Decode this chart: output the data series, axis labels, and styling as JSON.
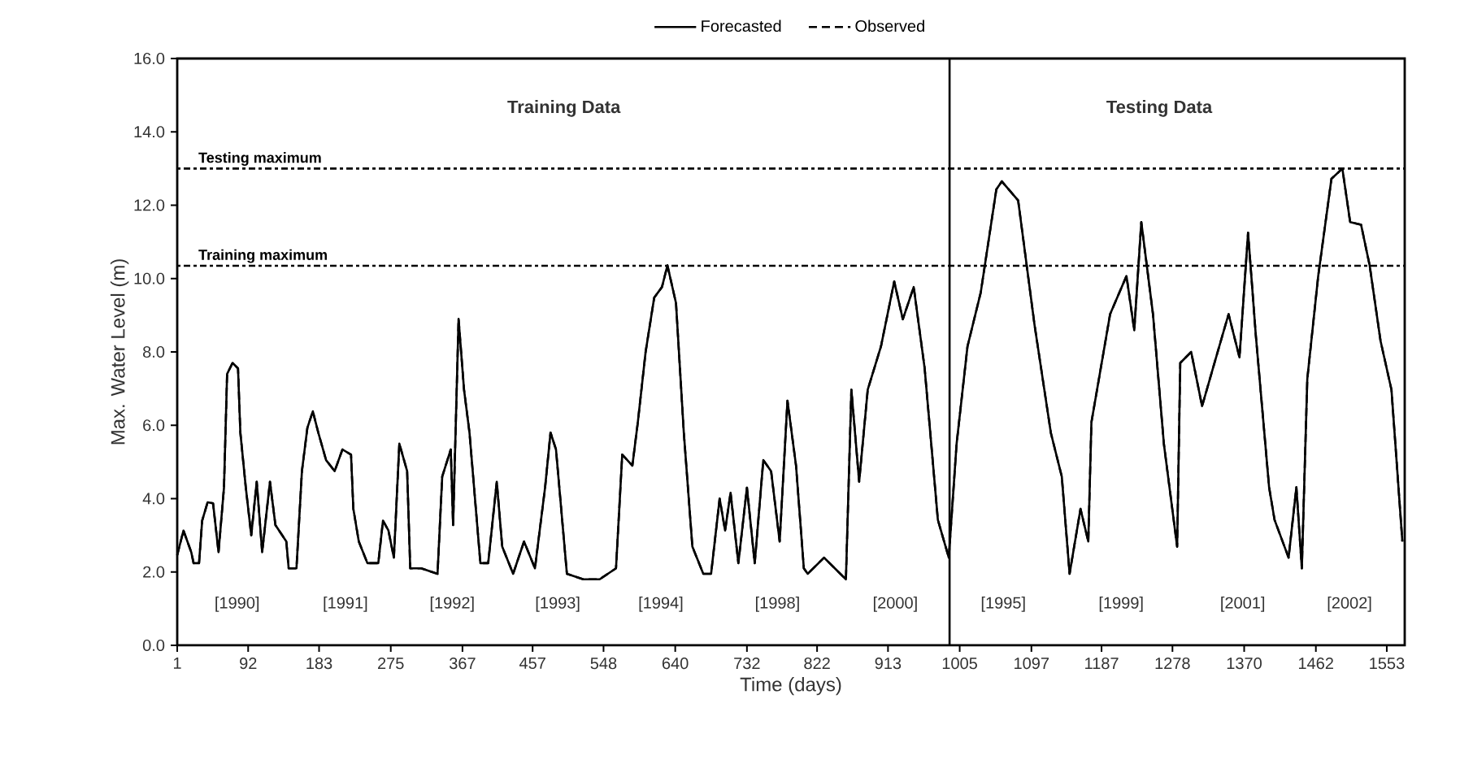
{
  "chart_data": {
    "type": "line",
    "xlabel": "Time (days)",
    "ylabel": "Max. Water Level (m)",
    "xlim": [
      1,
      1576
    ],
    "ylim": [
      0,
      16
    ],
    "xticks": [
      1,
      92,
      183,
      275,
      367,
      457,
      548,
      640,
      732,
      822,
      913,
      1005,
      1097,
      1187,
      1278,
      1370,
      1462,
      1553
    ],
    "yticks": [
      {
        "value": 0,
        "label": "0.0"
      },
      {
        "value": 2,
        "label": "2.0"
      },
      {
        "value": 4,
        "label": "4.0"
      },
      {
        "value": 6,
        "label": "6.0"
      },
      {
        "value": 8,
        "label": "8.0"
      },
      {
        "value": 10,
        "label": "10.0"
      },
      {
        "value": 12,
        "label": "12.0"
      },
      {
        "value": 14,
        "label": "14.0"
      },
      {
        "value": 16,
        "label": "16.0"
      }
    ],
    "x": [
      1,
      9,
      19,
      22,
      29,
      33,
      40,
      47,
      54,
      61,
      65,
      72,
      79,
      82,
      89,
      96,
      103,
      110,
      120,
      127,
      141,
      144,
      154,
      161,
      168,
      175,
      182,
      192,
      203,
      213,
      224,
      227,
      234,
      245,
      259,
      265,
      272,
      279,
      286,
      296,
      300,
      314,
      335,
      341,
      352,
      355,
      362,
      369,
      376,
      390,
      400,
      411,
      418,
      432,
      446,
      460,
      473,
      480,
      487,
      501,
      522,
      543,
      564,
      572,
      585,
      592,
      602,
      613,
      623,
      630,
      641,
      651,
      662,
      676,
      686,
      697,
      704,
      711,
      721,
      732,
      742,
      753,
      763,
      774,
      784,
      795,
      805,
      810,
      831,
      859,
      866,
      876,
      887,
      904,
      921,
      932,
      946,
      960,
      977,
      991,
      1001,
      1015,
      1032,
      1052,
      1059,
      1080,
      1101,
      1122,
      1136,
      1146,
      1160,
      1170,
      1174,
      1198,
      1219,
      1229,
      1238,
      1253,
      1267,
      1284,
      1288,
      1302,
      1316,
      1330,
      1350,
      1364,
      1375,
      1385,
      1402,
      1409,
      1427,
      1437,
      1444,
      1451,
      1465,
      1482,
      1496,
      1506,
      1520,
      1531,
      1545,
      1559,
      1573
    ],
    "series": [
      {
        "name": "Forecasted",
        "color": "#000000",
        "line_style": "solid",
        "values": [
          2.46,
          3.13,
          2.54,
          2.24,
          2.24,
          3.4,
          3.9,
          3.87,
          2.54,
          4.3,
          7.4,
          7.7,
          7.55,
          5.8,
          4.3,
          3.0,
          4.46,
          2.54,
          4.46,
          3.28,
          2.83,
          2.1,
          2.1,
          4.75,
          5.93,
          6.38,
          5.8,
          5.05,
          4.75,
          5.34,
          5.2,
          3.72,
          2.83,
          2.24,
          2.24,
          3.4,
          3.13,
          2.39,
          5.5,
          4.75,
          2.1,
          2.1,
          1.95,
          4.6,
          5.34,
          3.28,
          8.9,
          6.97,
          5.8,
          2.24,
          2.24,
          4.46,
          2.69,
          1.95,
          2.83,
          2.1,
          4.3,
          5.8,
          5.34,
          1.95,
          1.8,
          1.8,
          2.1,
          5.2,
          4.9,
          6.08,
          8.0,
          9.48,
          9.77,
          10.36,
          9.33,
          5.8,
          2.69,
          1.95,
          1.95,
          4.0,
          3.13,
          4.16,
          2.24,
          4.3,
          2.24,
          5.05,
          4.75,
          2.83,
          6.67,
          4.9,
          2.1,
          1.95,
          2.39,
          1.8,
          6.97,
          4.46,
          6.97,
          8.15,
          9.92,
          8.89,
          9.77,
          7.56,
          3.42,
          2.39,
          5.49,
          8.15,
          9.62,
          12.43,
          12.65,
          12.13,
          8.74,
          5.79,
          4.6,
          1.95,
          3.72,
          2.83,
          6.08,
          9.03,
          10.07,
          8.59,
          11.54,
          9.03,
          5.49,
          2.69,
          7.7,
          8.0,
          6.52,
          7.56,
          9.03,
          7.85,
          11.25,
          8.44,
          4.31,
          3.42,
          2.39,
          4.31,
          2.1,
          7.26,
          10.07,
          12.72,
          13.0,
          11.54,
          11.47,
          10.36,
          8.3,
          6.97,
          2.83
        ]
      },
      {
        "name": "Observed",
        "color": "#000000",
        "line_style": "dashed",
        "values": [
          2.46,
          3.13,
          2.54,
          2.24,
          2.24,
          3.4,
          3.9,
          3.87,
          2.54,
          4.3,
          7.4,
          7.7,
          7.55,
          5.8,
          4.3,
          3.0,
          4.46,
          2.54,
          4.46,
          3.28,
          2.83,
          2.1,
          2.1,
          4.75,
          5.93,
          6.38,
          5.8,
          5.05,
          4.75,
          5.34,
          5.2,
          3.72,
          2.83,
          2.24,
          2.24,
          3.4,
          3.13,
          2.39,
          5.5,
          4.75,
          2.1,
          2.1,
          1.95,
          4.6,
          5.34,
          3.28,
          8.9,
          6.97,
          5.8,
          2.24,
          2.24,
          4.46,
          2.69,
          1.95,
          2.83,
          2.1,
          4.3,
          5.8,
          5.34,
          1.95,
          1.8,
          1.8,
          2.1,
          5.2,
          4.9,
          6.08,
          8.0,
          9.48,
          9.77,
          10.36,
          9.33,
          5.8,
          2.69,
          1.95,
          1.95,
          4.0,
          3.13,
          4.16,
          2.24,
          4.3,
          2.24,
          5.05,
          4.75,
          2.83,
          6.67,
          4.9,
          2.1,
          1.95,
          2.39,
          1.8,
          6.97,
          4.46,
          6.97,
          8.15,
          9.92,
          8.89,
          9.77,
          7.56,
          3.42,
          2.39,
          5.49,
          8.15,
          9.62,
          12.43,
          12.65,
          12.13,
          8.74,
          5.79,
          4.6,
          1.95,
          3.72,
          2.83,
          6.08,
          9.03,
          10.07,
          8.59,
          11.54,
          9.03,
          5.49,
          2.69,
          7.7,
          8.0,
          6.52,
          7.56,
          9.03,
          7.85,
          11.25,
          8.44,
          4.31,
          3.42,
          2.39,
          4.31,
          2.1,
          7.26,
          10.07,
          12.72,
          13.0,
          11.54,
          11.47,
          10.36,
          8.3,
          6.97,
          2.83
        ]
      }
    ],
    "ref_lines": [
      {
        "axis": "y",
        "value": 13,
        "label": "Testing maximum",
        "line_style": "dotted"
      },
      {
        "axis": "y",
        "value": 10.35,
        "label": "Training maximum",
        "line_style": "dotted"
      },
      {
        "axis": "x",
        "value": 992,
        "line_style": "solid"
      }
    ],
    "annotations": [
      "Training Data",
      "Testing Data",
      "[1990]",
      "[1991]",
      "[1992]",
      "[1993]",
      "[1994]",
      "[1998]",
      "[2000]",
      "[1995]",
      "[1999]",
      "[2001]",
      "[2002]"
    ],
    "legend": "top",
    "grid": false,
    "marker": "none"
  }
}
